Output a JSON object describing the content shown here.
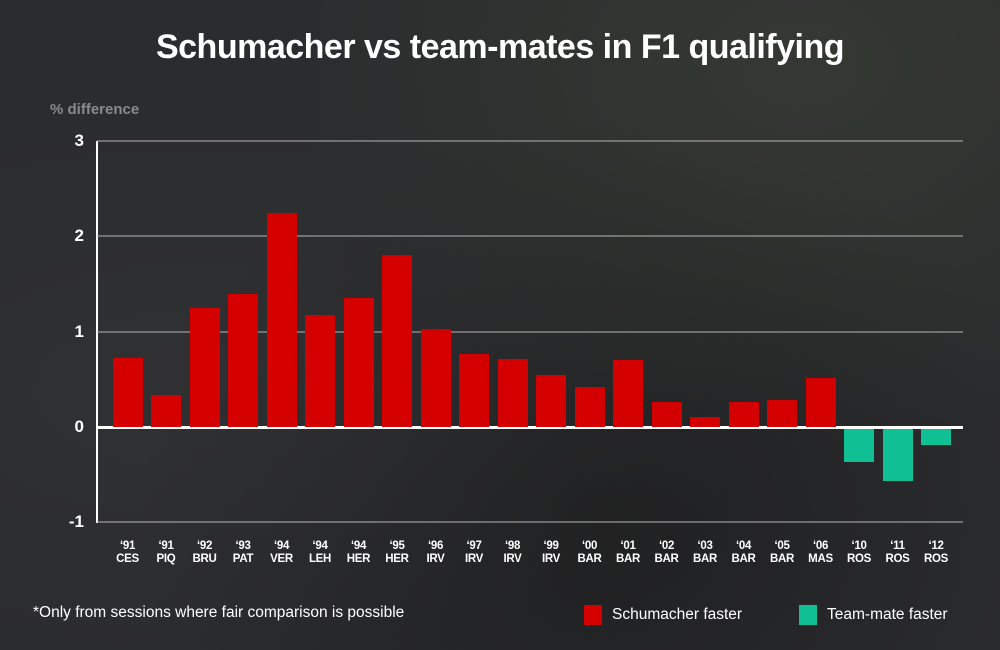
{
  "chart_data": {
    "type": "bar",
    "title": "Schumacher vs team-mates in F1 qualifying",
    "ylabel": "% difference",
    "xlabel": "",
    "ylim": [
      -1,
      3
    ],
    "yticks": [
      3,
      2,
      1,
      0,
      -1
    ],
    "grid": true,
    "categories": [
      "'91 CES",
      "'91 PIQ",
      "'92 BRU",
      "'93 PAT",
      "'94 VER",
      "'94 LEH",
      "'94 HER",
      "'95 HER",
      "'96 IRV",
      "'97 IRV",
      "'98 IRV",
      "'99 IRV",
      "'00 BAR",
      "'01 BAR",
      "'02 BAR",
      "'03 BAR",
      "'04 BAR",
      "'05 BAR",
      "'06 MAS",
      "'10 ROS",
      "'11 ROS",
      "'12 ROS"
    ],
    "years": [
      "'91",
      "'91",
      "'92",
      "'93",
      "'94",
      "'94",
      "'94",
      "'95",
      "'96",
      "'97",
      "'98",
      "'99",
      "'00",
      "'01",
      "'02",
      "'03",
      "'04",
      "'05",
      "'06",
      "'10",
      "'11",
      "'12"
    ],
    "teammates": [
      "CES",
      "PIQ",
      "BRU",
      "PAT",
      "VER",
      "LEH",
      "HER",
      "HER",
      "IRV",
      "IRV",
      "IRV",
      "IRV",
      "BAR",
      "BAR",
      "BAR",
      "BAR",
      "BAR",
      "BAR",
      "MAS",
      "ROS",
      "ROS",
      "ROS"
    ],
    "values": [
      0.72,
      0.34,
      1.25,
      1.4,
      2.25,
      1.17,
      1.35,
      1.8,
      1.03,
      0.77,
      0.71,
      0.55,
      0.42,
      0.7,
      0.26,
      0.1,
      0.26,
      0.28,
      0.51,
      -0.35,
      -0.55,
      -0.17
    ],
    "legend": [
      {
        "label": "Schumacher faster",
        "color": "#d40000"
      },
      {
        "label": "Team-mate faster",
        "color": "#10bf94"
      }
    ],
    "legend_position": "bottom-right",
    "annotation": "*Only from sessions where fair comparison is possible"
  }
}
